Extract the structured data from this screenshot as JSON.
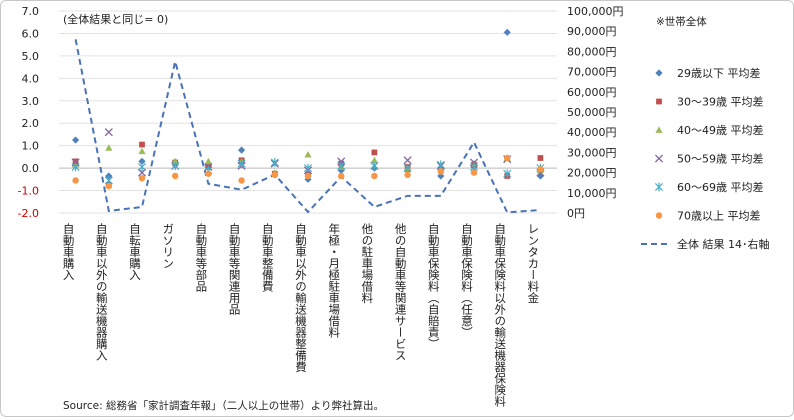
{
  "chart_data": {
    "type": "scatter",
    "annotation": "(全体結果と同じ= 0)",
    "legend_header": "※世帯全体",
    "source": "Source: 総務省「家計調査年報」（二人以上の世帯）より弊社算出。",
    "categories": [
      "自動車購入",
      "自動車以外の輸送機器購入",
      "自転車購入",
      "ガソリン",
      "自動車等部品",
      "自動車等関連用品",
      "自動車整備費",
      "自動車以外の輸送機器整備費",
      "年極・月極駐車場借料",
      "他の駐車場借料",
      "他の自動車等関連サービス",
      "自動車保険料（自賠責）",
      "自動車保険料（任意）",
      "自動車保険料以外の輸送機器保険料",
      "レンタカー料金"
    ],
    "y_left": {
      "min": -2.0,
      "max": 7.0,
      "ticks": [
        "-2.0",
        "-1.0",
        "0.0",
        "1.0",
        "2.0",
        "3.0",
        "4.0",
        "5.0",
        "6.0",
        "7.0"
      ]
    },
    "y_right": {
      "min": 0,
      "max": 100000,
      "ticks": [
        "0円",
        "10,000円",
        "20,000円",
        "30,000円",
        "40,000円",
        "50,000円",
        "60,000円",
        "70,000円",
        "80,000円",
        "90,000円",
        "100,000円"
      ]
    },
    "series": [
      {
        "name": "29歳以下 平均差",
        "marker": "diamond",
        "color": "#4f81bd",
        "values": [
          1.25,
          -0.35,
          0.3,
          0.15,
          0.1,
          0.8,
          -0.3,
          -0.5,
          -0.1,
          0.0,
          -0.1,
          -0.35,
          0.05,
          6.05,
          -0.35
        ]
      },
      {
        "name": "30～39歳 平均差",
        "marker": "square",
        "color": "#c0504d",
        "values": [
          0.3,
          -0.75,
          1.05,
          0.25,
          0.05,
          0.35,
          -0.25,
          -0.3,
          0.2,
          0.7,
          0.05,
          -0.1,
          0.15,
          -0.35,
          0.45
        ]
      },
      {
        "name": "40～49歳 平均差",
        "marker": "triangle",
        "color": "#9bbb59",
        "values": [
          0.15,
          0.9,
          0.75,
          0.3,
          0.3,
          0.3,
          -0.2,
          0.6,
          0.05,
          0.35,
          0.0,
          0.1,
          0.2,
          0.45,
          -0.1
        ]
      },
      {
        "name": "50～59歳 平均差",
        "marker": "x",
        "color": "#8064a2",
        "values": [
          0.25,
          1.6,
          -0.2,
          0.1,
          0.05,
          0.1,
          0.2,
          -0.1,
          0.3,
          0.1,
          0.35,
          0.1,
          0.25,
          0.4,
          -0.2
        ]
      },
      {
        "name": "60～69歳 平均差",
        "marker": "star",
        "color": "#4bacc6",
        "values": [
          0.05,
          -0.55,
          0.05,
          0.1,
          -0.1,
          0.2,
          0.25,
          0.0,
          0.1,
          0.1,
          0.0,
          0.15,
          0.05,
          -0.25,
          0.0
        ]
      },
      {
        "name": "70歳以上 平均差",
        "marker": "circle",
        "color": "#f79646",
        "values": [
          -0.55,
          -0.8,
          -0.45,
          -0.35,
          -0.25,
          -0.55,
          -0.3,
          -0.35,
          -0.35,
          -0.35,
          -0.3,
          -0.15,
          -0.2,
          0.45,
          -0.05
        ]
      }
    ],
    "line_series": {
      "name": "全体 結果 14･右軸",
      "axis": "right",
      "style": "dashed",
      "color": "#4a73b5",
      "values": [
        86000,
        1000,
        3000,
        75000,
        14500,
        11500,
        19000,
        500,
        18000,
        3000,
        8500,
        8500,
        35000,
        300,
        1500
      ]
    }
  }
}
